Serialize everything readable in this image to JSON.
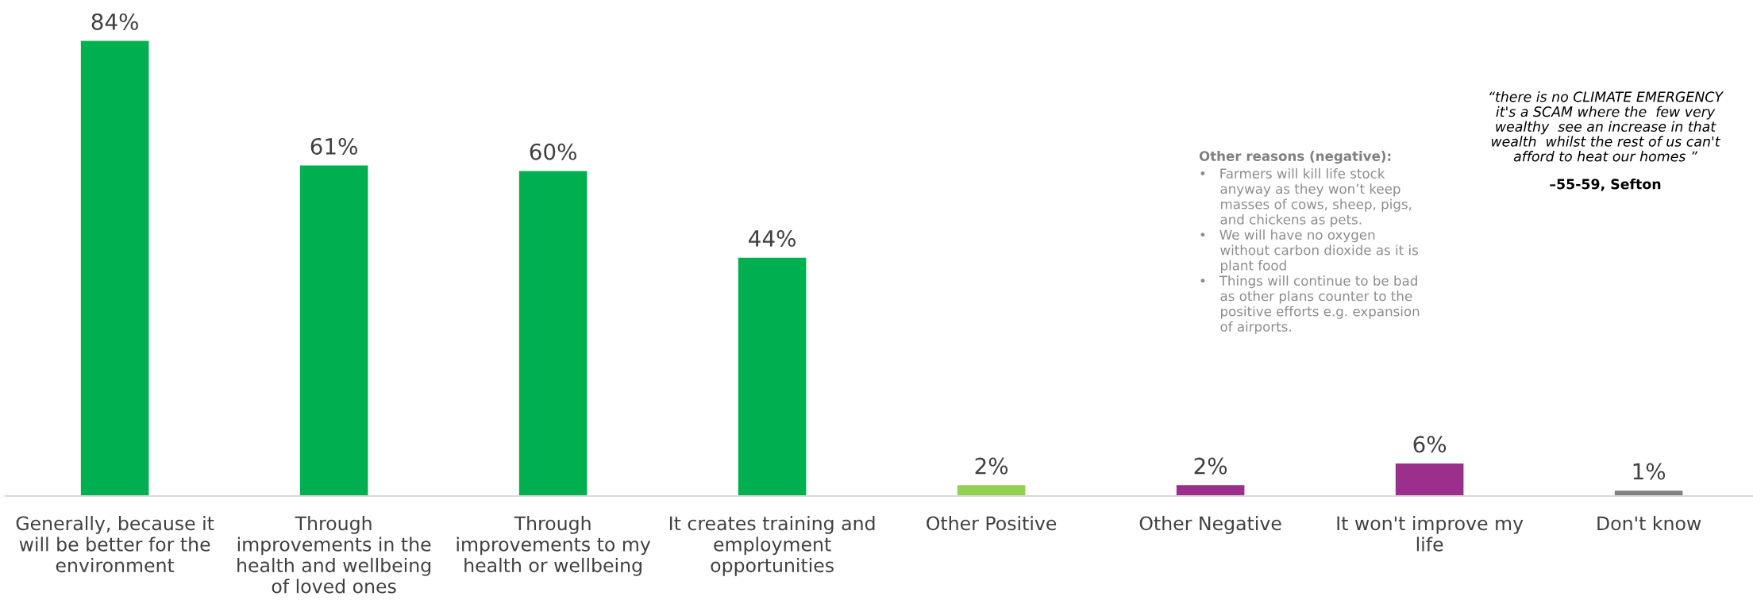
{
  "chart_data": {
    "type": "bar",
    "categories": [
      "Generally, because it\nwill be better for the\nenvironment",
      "Through\nimprovements in the\nhealth and wellbeing\nof loved ones",
      "Through\nimprovements to my\nhealth or wellbeing",
      "It creates training and\nemployment\nopportunities",
      "Other Positive",
      "Other Negative",
      "It won't improve my\nlife",
      "Don't know"
    ],
    "values": [
      84,
      61,
      60,
      44,
      2,
      2,
      6,
      1
    ],
    "colors": [
      "#00b050",
      "#00b050",
      "#00b050",
      "#00b050",
      "#92d050",
      "#9b2f8b",
      "#9b2f8b",
      "#808080"
    ],
    "value_labels": [
      "84%",
      "61%",
      "60%",
      "44%",
      "2%",
      "2%",
      "6%",
      "1%"
    ],
    "annotations": [
      "Other reasons (negative):\n•   Farmers will kill life stock\n     anyway as they won’t keep\n     masses of cows, sheep, pigs,\n     and chickens as pets.\n•   We will have no oxygen\n     without carbon dioxide as it is\n     plant food\n•   Things will continue to be bad\n     as other plans counter to the\n     positive efforts e.g. expansion\n     of airports.",
      "“there is no CLIMATE EMERGENCY\nit's a SCAM where the  few very\nwealthy  see an increase in that\nwealth  whilst the rest of us can't\nafford to heat our homes ”\n–55-59, Sefton"
    ],
    "grid": false,
    "legend": false
  }
}
